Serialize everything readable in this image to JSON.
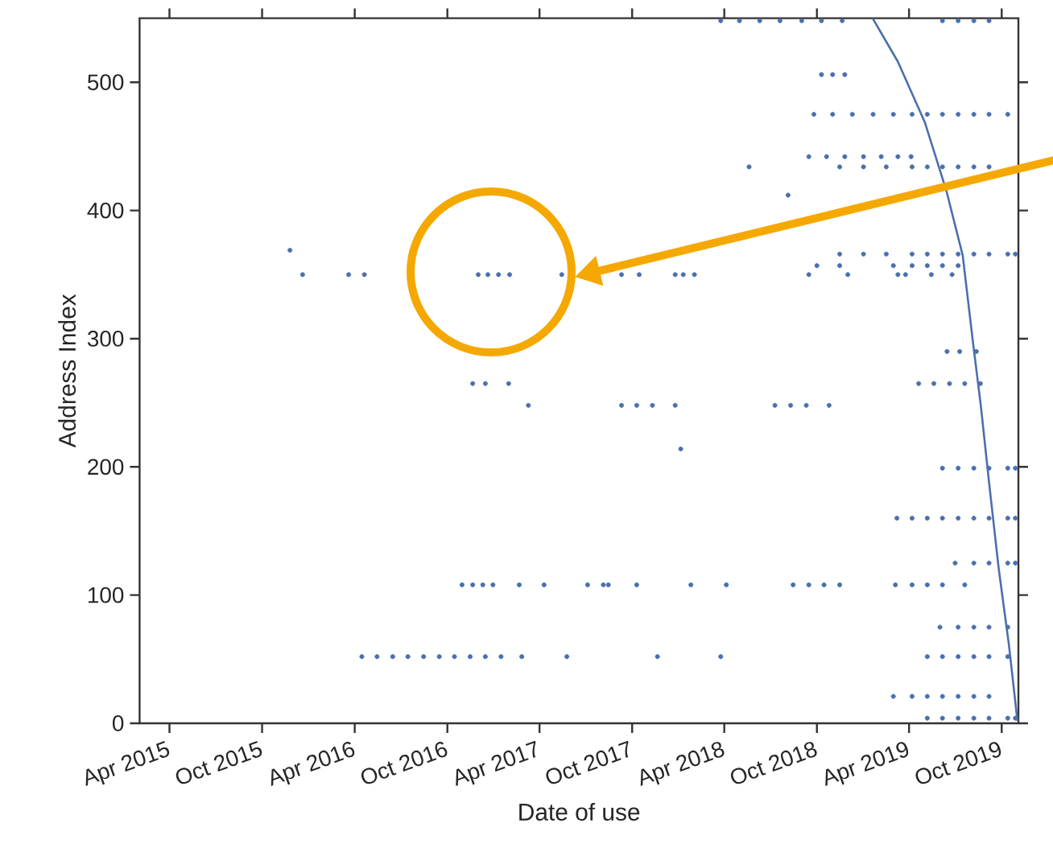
{
  "chart_data": {
    "type": "scatter",
    "xlabel": "Date of use",
    "ylabel": "Address Index",
    "marker": "circle",
    "xlim": [
      "2015-02-01",
      "2019-11-03"
    ],
    "ylim": [
      0,
      550
    ],
    "xticks": [
      {
        "value": "2015-04-01",
        "label": "Apr 2015"
      },
      {
        "value": "2015-10-01",
        "label": "Oct 2015"
      },
      {
        "value": "2016-04-01",
        "label": "Apr 2016"
      },
      {
        "value": "2016-10-01",
        "label": "Oct 2016"
      },
      {
        "value": "2017-04-01",
        "label": "Apr 2017"
      },
      {
        "value": "2017-10-01",
        "label": "Oct 2017"
      },
      {
        "value": "2018-04-01",
        "label": "Apr 2018"
      },
      {
        "value": "2018-10-01",
        "label": "Oct 2018"
      },
      {
        "value": "2019-04-01",
        "label": "Apr 2019"
      },
      {
        "value": "2019-10-01",
        "label": "Oct 2019"
      }
    ],
    "yticks": [
      0,
      100,
      200,
      300,
      400,
      500
    ],
    "series": [
      {
        "color": "#4a6fad",
        "x": [
          "2018-03-25",
          "2018-05-01",
          "2018-06-10",
          "2018-07-20",
          "2018-09-01",
          "2018-10-10",
          "2018-11-20",
          "2019-06-06",
          "2019-07-07",
          "2019-08-07",
          "2019-09-06",
          "2018-10-10",
          "2018-11-01",
          "2018-11-25",
          "2018-09-25",
          "2018-11-01",
          "2018-12-10",
          "2019-01-20",
          "2019-03-01",
          "2019-04-07",
          "2019-05-07",
          "2019-06-06",
          "2019-07-07",
          "2019-08-07",
          "2019-09-06",
          "2019-10-13",
          "2018-09-15",
          "2018-10-20",
          "2018-11-25",
          "2019-01-01",
          "2019-02-05",
          "2019-03-10",
          "2019-04-05",
          "2018-05-20",
          "2018-11-15",
          "2019-01-01",
          "2019-02-15",
          "2019-04-07",
          "2019-05-07",
          "2019-06-06",
          "2019-07-07",
          "2019-08-07",
          "2019-09-06",
          "2018-08-05",
          "2015-11-25",
          "2018-11-15",
          "2019-01-01",
          "2019-02-15",
          "2019-04-07",
          "2019-05-07",
          "2019-06-06",
          "2019-07-07",
          "2019-08-07",
          "2019-09-06",
          "2019-10-13",
          "2019-10-28",
          "2018-10-01",
          "2018-11-15",
          "2019-03-01",
          "2019-04-07",
          "2019-05-07",
          "2019-06-06",
          "2019-07-07",
          "2015-12-20",
          "2016-03-20",
          "2016-04-20",
          "2016-12-01",
          "2016-12-20",
          "2017-01-10",
          "2017-02-01",
          "2017-05-15",
          "2017-09-10",
          "2017-10-15",
          "2017-12-25",
          "2018-01-10",
          "2018-02-01",
          "2018-09-15",
          "2018-12-01",
          "2019-03-10",
          "2019-03-25",
          "2019-05-15",
          "2019-06-25",
          "2019-06-15",
          "2019-07-10",
          "2019-08-12",
          "2016-11-20",
          "2016-12-15",
          "2017-01-30",
          "2019-04-20",
          "2019-05-20",
          "2019-06-20",
          "2019-07-20",
          "2019-08-20",
          "2017-03-10",
          "2017-09-10",
          "2017-10-10",
          "2017-11-10",
          "2017-12-25",
          "2018-07-10",
          "2018-08-10",
          "2018-09-10",
          "2018-10-25",
          "2018-01-05",
          "2019-06-06",
          "2019-07-07",
          "2019-08-07",
          "2019-09-06",
          "2019-10-13",
          "2019-10-28",
          "2019-03-08",
          "2019-04-07",
          "2019-05-07",
          "2019-06-06",
          "2019-07-07",
          "2019-08-07",
          "2019-09-06",
          "2019-10-13",
          "2019-10-28",
          "2019-07-01",
          "2019-08-07",
          "2019-09-06",
          "2019-10-13",
          "2019-10-28",
          "2016-10-30",
          "2016-11-20",
          "2016-12-10",
          "2016-12-30",
          "2017-02-20",
          "2017-04-10",
          "2017-07-05",
          "2017-08-05",
          "2017-08-15",
          "2017-10-10",
          "2018-01-25",
          "2018-04-05",
          "2018-08-15",
          "2018-09-15",
          "2018-10-15",
          "2018-11-15",
          "2019-03-05",
          "2019-04-07",
          "2019-05-07",
          "2019-06-06",
          "2019-07-20",
          "2019-06-01",
          "2019-07-07",
          "2019-08-07",
          "2019-09-06",
          "2019-10-13",
          "2016-04-15",
          "2016-05-15",
          "2016-06-15",
          "2016-07-15",
          "2016-08-15",
          "2016-09-15",
          "2016-10-15",
          "2016-11-15",
          "2016-12-15",
          "2017-01-15",
          "2017-02-25",
          "2017-05-25",
          "2017-11-20",
          "2018-03-25",
          "2019-05-07",
          "2019-06-06",
          "2019-07-07",
          "2019-08-07",
          "2019-09-06",
          "2019-10-13",
          "2019-03-01",
          "2019-04-07",
          "2019-05-07",
          "2019-06-06",
          "2019-07-07",
          "2019-08-07",
          "2019-09-06",
          "2019-05-07",
          "2019-06-06",
          "2019-07-07",
          "2019-08-07",
          "2019-09-06",
          "2019-10-13",
          "2019-10-28"
        ],
        "values": [
          548,
          548,
          548,
          548,
          548,
          548,
          548,
          548,
          548,
          548,
          548,
          506,
          506,
          506,
          475,
          475,
          475,
          475,
          475,
          475,
          475,
          475,
          475,
          475,
          475,
          475,
          442,
          442,
          442,
          442,
          442,
          442,
          442,
          434,
          434,
          434,
          434,
          434,
          434,
          434,
          434,
          434,
          434,
          412,
          369,
          366,
          366,
          366,
          366,
          366,
          366,
          366,
          366,
          366,
          366,
          366,
          357,
          357,
          357,
          357,
          357,
          357,
          357,
          350,
          350,
          350,
          350,
          350,
          350,
          350,
          350,
          350,
          350,
          350,
          350,
          350,
          350,
          350,
          350,
          350,
          350,
          350,
          290,
          290,
          290,
          265,
          265,
          265,
          265,
          265,
          265,
          265,
          265,
          248,
          248,
          248,
          248,
          248,
          248,
          248,
          248,
          248,
          214,
          199,
          199,
          199,
          199,
          199,
          199,
          160,
          160,
          160,
          160,
          160,
          160,
          160,
          160,
          160,
          125,
          125,
          125,
          125,
          125,
          108,
          108,
          108,
          108,
          108,
          108,
          108,
          108,
          108,
          108,
          108,
          108,
          108,
          108,
          108,
          108,
          108,
          108,
          108,
          108,
          108,
          75,
          75,
          75,
          75,
          75,
          52,
          52,
          52,
          52,
          52,
          52,
          52,
          52,
          52,
          52,
          52,
          52,
          52,
          52,
          52,
          52,
          52,
          52,
          52,
          52,
          21,
          21,
          21,
          21,
          21,
          21,
          21,
          4,
          4,
          4,
          4,
          4,
          4,
          4
        ]
      },
      {
        "type": "line",
        "color": "#4a6fad",
        "marker": "none",
        "x": [
          "2019-01-19",
          "2019-03-10",
          "2019-05-02",
          "2019-06-14",
          "2019-07-16",
          "2019-08-05",
          "2019-08-21",
          "2019-09-06",
          "2019-09-25",
          "2019-10-15",
          "2019-10-27",
          "2019-11-01"
        ],
        "values": [
          550,
          516,
          469,
          415,
          365,
          298,
          247,
          188,
          121,
          62,
          20,
          2
        ]
      }
    ]
  }
}
